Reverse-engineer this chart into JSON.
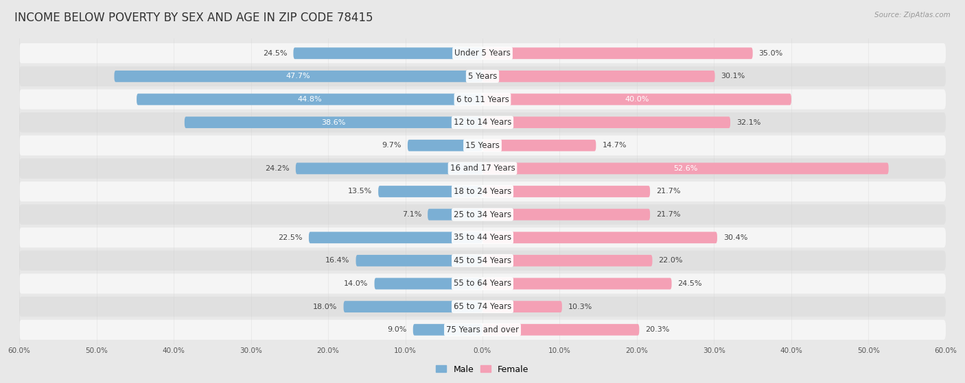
{
  "title": "INCOME BELOW POVERTY BY SEX AND AGE IN ZIP CODE 78415",
  "source": "Source: ZipAtlas.com",
  "categories": [
    "Under 5 Years",
    "5 Years",
    "6 to 11 Years",
    "12 to 14 Years",
    "15 Years",
    "16 and 17 Years",
    "18 to 24 Years",
    "25 to 34 Years",
    "35 to 44 Years",
    "45 to 54 Years",
    "55 to 64 Years",
    "65 to 74 Years",
    "75 Years and over"
  ],
  "male_values": [
    24.5,
    47.7,
    44.8,
    38.6,
    9.7,
    24.2,
    13.5,
    7.1,
    22.5,
    16.4,
    14.0,
    18.0,
    9.0
  ],
  "female_values": [
    35.0,
    30.1,
    40.0,
    32.1,
    14.7,
    52.6,
    21.7,
    21.7,
    30.4,
    22.0,
    24.5,
    10.3,
    20.3
  ],
  "male_color": "#7bafd4",
  "female_color": "#f4a0b5",
  "male_label": "Male",
  "female_label": "Female",
  "xlim": 60.0,
  "background_color": "#e8e8e8",
  "row_bg_color_even": "#f5f5f5",
  "row_bg_color_odd": "#e0e0e0",
  "title_fontsize": 12,
  "label_fontsize": 8.5,
  "value_fontsize": 8,
  "source_fontsize": 7.5
}
